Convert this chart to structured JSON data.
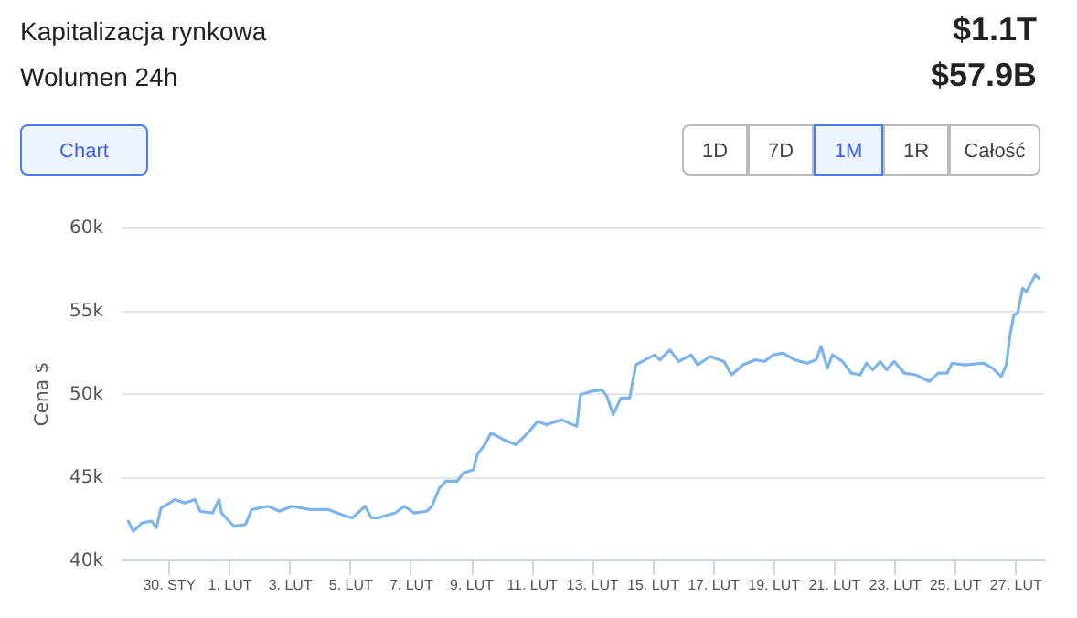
{
  "chart_data": {
    "type": "line",
    "ylabel": "Cena $",
    "annotations": [
      "Kapitalizacja rynkowa",
      "$1.1T",
      "Wolumen 24h",
      "$57.9B",
      "Chart",
      "1D",
      "7D",
      "1M",
      "1R",
      "Całość"
    ],
    "x": [
      "--01-28T16:00",
      "--01-28T20:00",
      "--01-29T03:00",
      "--01-29T10:30",
      "--01-29T14:20",
      "--01-29T18:00",
      "--01-30T01:00",
      "--01-30T05:00",
      "--01-30T13:00",
      "--01-30T21:00",
      "--01-31T01:00",
      "--01-31T11:00",
      "--01-31T16:00",
      "--01-31T18:00",
      "--02-01T00:00",
      "--02-01T04:00",
      "--02-01T13:00",
      "--02-01T18:00",
      "--02-02T07:00",
      "--02-02T16:00",
      "--02-03T02:00",
      "--02-03T16:00",
      "--02-04T07:00",
      "--02-04T21:00",
      "--02-05T02:00",
      "--02-05T12:00",
      "--02-05T17:00",
      "--02-05T22:00",
      "--02-06T12:00",
      "--02-06T19:00",
      "--02-07T03:00",
      "--02-07T13:00",
      "--02-07T17:00",
      "--02-07T23:00",
      "--02-08T04:00",
      "--02-08T13:00",
      "--02-08T18:00",
      "--02-09T02:00",
      "--02-09T05:00",
      "--02-09T11:00",
      "--02-09T16:00",
      "--02-10T02:00",
      "--02-10T12:00",
      "--02-10T21:00",
      "--02-11T05:00",
      "--02-11T12:00",
      "--02-12T00:00",
      "--02-12T12:00",
      "--02-12T15:00",
      "--02-12T23:00",
      "--02-13T08:00",
      "--02-13T12:00",
      "--02-13T17:00",
      "--02-13T23:00",
      "--02-14T06:00",
      "--02-14T11:00",
      "--02-14T16:00",
      "--02-15T02:00",
      "--02-15T06:00",
      "--02-15T14:00",
      "--02-15T21:00",
      "--02-16T07:00",
      "--02-16T12:00",
      "--02-16T22:00",
      "--02-17T09:00",
      "--02-17T15:00",
      "--02-18T00:00",
      "--02-18T10:00",
      "--02-18T17:00",
      "--02-19T00:00",
      "--02-19T08:00",
      "--02-19T17:00",
      "--02-20T03:00",
      "--02-20T10:00",
      "--02-20T14:00",
      "--02-20T19:00",
      "--02-20T23:00",
      "--02-21T07:00",
      "--02-21T14:00",
      "--02-21T21:00",
      "--02-22T02:00",
      "--02-22T07:00",
      "--02-22T13:00",
      "--02-22T18:00",
      "--02-23T00:00",
      "--02-23T08:00",
      "--02-23T17:00",
      "--02-24T04:00",
      "--02-24T11:00",
      "--02-24T18:00",
      "--02-24T22:00",
      "--02-25T08:00",
      "--02-25T23:00",
      "--02-26T06:00",
      "--02-26T13:00",
      "--02-26T17:00",
      "--02-26T20:00",
      "--02-26T23:00",
      "--02-27T02:00",
      "--02-27T06:00",
      "--02-27T09:00",
      "--02-27T16:00",
      "--02-27T19:00"
    ],
    "series": [
      {
        "color": "#7cb5ec",
        "values": [
          42300,
          41700,
          42200,
          42300,
          41900,
          43100,
          43400,
          43600,
          43400,
          43600,
          42900,
          42800,
          43600,
          42800,
          42300,
          42000,
          42100,
          43000,
          43200,
          42900,
          43200,
          43000,
          43000,
          42600,
          42500,
          43200,
          42500,
          42500,
          42800,
          43200,
          42800,
          42900,
          43200,
          44300,
          44700,
          44700,
          45200,
          45400,
          46300,
          46900,
          47600,
          47200,
          46900,
          47600,
          48300,
          48100,
          48400,
          48000,
          49900,
          50100,
          50200,
          49800,
          48700,
          49700,
          49700,
          51700,
          51900,
          52300,
          52000,
          52600,
          51900,
          52300,
          51700,
          52200,
          51900,
          51100,
          51700,
          52000,
          51900,
          52300,
          52400,
          52000,
          51800,
          52000,
          52800,
          51500,
          52300,
          51900,
          51200,
          51100,
          51800,
          51400,
          51900,
          51400,
          51900,
          51200,
          51100,
          50700,
          51200,
          51200,
          51800,
          51700,
          51800,
          51500,
          51000,
          51700,
          53500,
          54700,
          54800,
          56300,
          56100,
          57100,
          56900
        ]
      }
    ],
    "xlim": [
      "--01-28T10:00",
      "--02-27T23:00"
    ],
    "xticks": [
      {
        "value": "--01-30",
        "label": "30. STY"
      },
      {
        "value": "--02-01",
        "label": "1. LUT"
      },
      {
        "value": "--02-03",
        "label": "3. LUT"
      },
      {
        "value": "--02-05",
        "label": "5. LUT"
      },
      {
        "value": "--02-07",
        "label": "7. LUT"
      },
      {
        "value": "--02-09",
        "label": "9. LUT"
      },
      {
        "value": "--02-11",
        "label": "11. LUT"
      },
      {
        "value": "--02-13",
        "label": "13. LUT"
      },
      {
        "value": "--02-15",
        "label": "15. LUT"
      },
      {
        "value": "--02-17",
        "label": "17. LUT"
      },
      {
        "value": "--02-19",
        "label": "19. LUT"
      },
      {
        "value": "--02-21",
        "label": "21. LUT"
      },
      {
        "value": "--02-23",
        "label": "23. LUT"
      },
      {
        "value": "--02-25",
        "label": "25. LUT"
      },
      {
        "value": "--02-27",
        "label": "27. LUT"
      }
    ],
    "ylim": [
      40000,
      60000
    ],
    "yticks": [
      {
        "value": 40000,
        "label": "40k"
      },
      {
        "value": 45000,
        "label": "45k"
      },
      {
        "value": 50000,
        "label": "50k"
      },
      {
        "value": 55000,
        "label": "55k"
      },
      {
        "value": 60000,
        "label": "60k"
      }
    ],
    "grid": "y",
    "marker": "none",
    "line_style": "solid"
  }
}
